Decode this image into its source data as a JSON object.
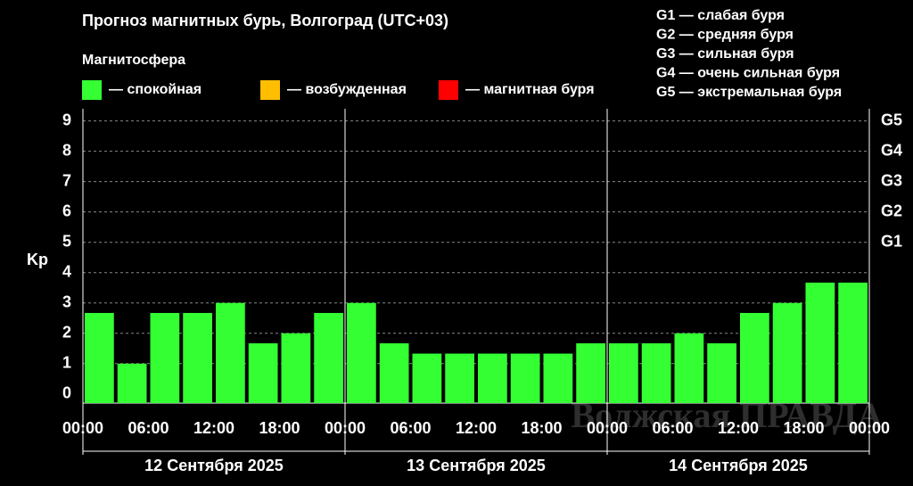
{
  "chart_data": {
    "type": "bar",
    "title": "Прогноз магнитных бурь, Волгоград (UTC+03)",
    "legend_title": "Магнитосфера",
    "legend": [
      {
        "name": "— спокойная",
        "color": "#33ff33"
      },
      {
        "name": "— возбужденная",
        "color": "#ffbf00"
      },
      {
        "name": "— магнитная буря",
        "color": "#ff0000"
      }
    ],
    "scale_legend": [
      "G1 — слабая буря",
      "G2 — средняя буря",
      "G3 — сильная буря",
      "G4 — очень сильная буря",
      "G5 — экстремальная буря"
    ],
    "ylabel": "Kp",
    "values": [
      2.67,
      1,
      2.67,
      2.67,
      3,
      1.67,
      2,
      2.67,
      3,
      1.67,
      1.33,
      1.33,
      1.33,
      1.33,
      1.33,
      1.67,
      1.67,
      1.67,
      2,
      1.67,
      2.67,
      3,
      3.67,
      3.67
    ],
    "color": "#33ff33",
    "ylim": [
      -0.3,
      9.4
    ],
    "yticks": [
      0,
      1,
      2,
      3,
      4,
      5,
      6,
      7,
      8,
      9
    ],
    "y2ticks": [
      {
        "value": 5,
        "label": "G1"
      },
      {
        "value": 6,
        "label": "G2"
      },
      {
        "value": 7,
        "label": "G3"
      },
      {
        "value": 8,
        "label": "G4"
      },
      {
        "value": 9,
        "label": "G5"
      }
    ],
    "time_labels": [
      "00:00",
      "06:00",
      "12:00",
      "18:00",
      "00:00",
      "06:00",
      "12:00",
      "18:00",
      "00:00",
      "06:00",
      "12:00",
      "18:00",
      "00:00"
    ],
    "days": [
      "12 Сентября 2025",
      "13 Сентября 2025",
      "14 Сентября 2025"
    ],
    "grid": true,
    "watermark": "Волжская ПРАВДА"
  }
}
